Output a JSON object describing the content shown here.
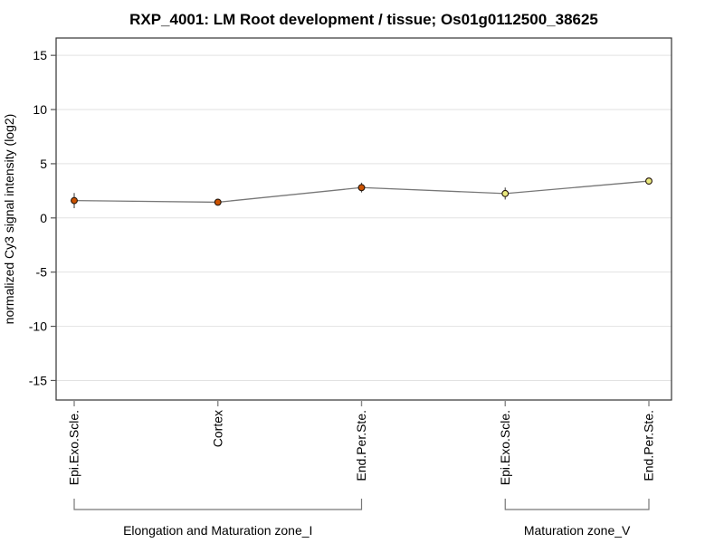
{
  "colors": {
    "background": "#ffffff",
    "grid": "#e2e2e2",
    "frame": "#333333",
    "axis_tick": "#555555",
    "x_tick": "#888888",
    "line": "#777777",
    "whisker": "#555555",
    "point_stroke": "#26160a",
    "group1_point_fill": "#cc5200",
    "group2_point_fill": "#e9e97e",
    "bracket": "#777777",
    "text": "#000000"
  },
  "chart_data": {
    "type": "line",
    "title": "RXP_4001: LM Root development / tissue; Os01g0112500_38625",
    "xlabel": "",
    "ylabel": "normalized Cy3 signal intensity (log2)",
    "ylim": [
      -16.8,
      16.6
    ],
    "yticks": [
      15,
      10,
      5,
      0,
      -5,
      -10,
      -15
    ],
    "grid": "horizontal",
    "legend": "none",
    "categories": [
      "Epi.Exo.Scle.",
      "Cortex",
      "End.Per.Ste.",
      "Epi.Exo.Scle.",
      "End.Per.Ste."
    ],
    "series": [
      {
        "name": "normalized Cy3 signal intensity (log2)",
        "values": [
          1.6,
          1.45,
          2.8,
          2.25,
          3.4
        ],
        "errors": [
          0.7,
          0.25,
          0.45,
          0.55,
          0.3
        ]
      }
    ],
    "point_fills": [
      "#cc5200",
      "#cc5200",
      "#cc5200",
      "#e9e97e",
      "#e9e97e"
    ],
    "groups": [
      {
        "label": "Elongation and Maturation zone_I",
        "start": 0,
        "end": 2
      },
      {
        "label": "Maturation zone_V",
        "start": 3,
        "end": 4
      }
    ]
  }
}
